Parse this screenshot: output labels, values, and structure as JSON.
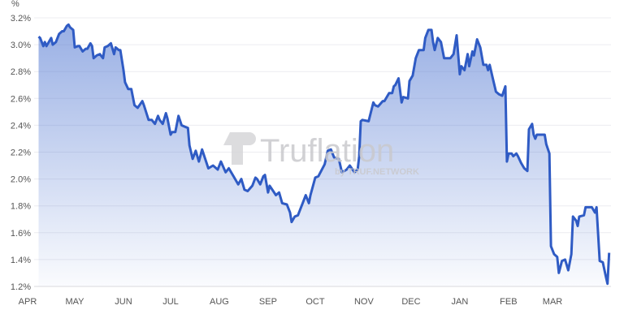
{
  "chart_data": {
    "type": "area",
    "title": "",
    "xlabel": "",
    "ylabel": "%",
    "ylim": [
      1.2,
      3.2
    ],
    "y_ticks": [
      "1.2%",
      "1.4%",
      "1.6%",
      "1.8%",
      "2.0%",
      "2.2%",
      "2.4%",
      "2.6%",
      "2.8%",
      "3.0%",
      "3.2%"
    ],
    "x_ticks": [
      {
        "label": "MAY",
        "date": "May 1"
      },
      {
        "label": "JUN",
        "date": "Jun 1"
      },
      {
        "label": "JUL",
        "date": "Jul 1"
      },
      {
        "label": "AUG",
        "date": "Aug 1"
      },
      {
        "label": "SEP",
        "date": "Sep 1"
      },
      {
        "label": "OCT",
        "date": "Oct 1"
      },
      {
        "label": "NOV",
        "date": "Nov 1"
      },
      {
        "label": "DEC",
        "date": "Dec 1"
      },
      {
        "label": "JAN",
        "date": "Jan 1"
      },
      {
        "label": "FEB",
        "date": "Feb 1"
      },
      {
        "label": "MAR",
        "date": "Mar 1"
      },
      {
        "label": "APR",
        "date": "Apr 1"
      }
    ],
    "grid": true,
    "legend": "none",
    "line_color": "#2f5bc4",
    "fill_color": "#5b7fd4",
    "watermark": {
      "brand": "Truflation",
      "byline": "by TRUF.NETWORK"
    },
    "series": [
      {
        "points": [
          [
            "Apr 8",
            3.06
          ],
          [
            "Apr 9",
            3.05
          ],
          [
            "Apr 11",
            2.99
          ],
          [
            "Apr 12",
            3.02
          ],
          [
            "Apr 13",
            2.99
          ],
          [
            "Apr 16",
            3.05
          ],
          [
            "Apr 17",
            3.0
          ],
          [
            "Apr 19",
            3.02
          ],
          [
            "Apr 21",
            3.08
          ],
          [
            "Apr 23",
            3.1
          ],
          [
            "Apr 24",
            3.1
          ],
          [
            "Apr 26",
            3.14
          ],
          [
            "Apr 27",
            3.15
          ],
          [
            "Apr 28",
            3.13
          ],
          [
            "Apr 30",
            3.11
          ],
          [
            "May 1",
            2.98
          ],
          [
            "May 3",
            2.99
          ],
          [
            "May 4",
            2.99
          ],
          [
            "May 6",
            2.95
          ],
          [
            "May 8",
            2.97
          ],
          [
            "May 9",
            2.97
          ],
          [
            "May 11",
            3.01
          ],
          [
            "May 12",
            2.99
          ],
          [
            "May 13",
            2.9
          ],
          [
            "May 15",
            2.92
          ],
          [
            "May 17",
            2.93
          ],
          [
            "May 19",
            2.9
          ],
          [
            "May 20",
            2.98
          ],
          [
            "May 22",
            2.99
          ],
          [
            "May 24",
            3.01
          ],
          [
            "May 26",
            2.93
          ],
          [
            "May 27",
            2.98
          ],
          [
            "May 29",
            2.96
          ],
          [
            "May 30",
            2.96
          ],
          [
            "Jun 1",
            2.81
          ],
          [
            "Jun 2",
            2.72
          ],
          [
            "Jun 4",
            2.67
          ],
          [
            "Jun 6",
            2.67
          ],
          [
            "Jun 8",
            2.55
          ],
          [
            "Jun 10",
            2.53
          ],
          [
            "Jun 13",
            2.58
          ],
          [
            "Jun 14",
            2.55
          ],
          [
            "Jun 17",
            2.44
          ],
          [
            "Jun 19",
            2.44
          ],
          [
            "Jun 21",
            2.41
          ],
          [
            "Jun 23",
            2.47
          ],
          [
            "Jun 24",
            2.44
          ],
          [
            "Jun 26",
            2.41
          ],
          [
            "Jun 28",
            2.49
          ],
          [
            "Jun 29",
            2.45
          ],
          [
            "Jul 1",
            2.33
          ],
          [
            "Jul 2",
            2.35
          ],
          [
            "Jul 4",
            2.35
          ],
          [
            "Jul 6",
            2.47
          ],
          [
            "Jul 8",
            2.4
          ],
          [
            "Jul 10",
            2.39
          ],
          [
            "Jul 12",
            2.38
          ],
          [
            "Jul 13",
            2.25
          ],
          [
            "Jul 15",
            2.15
          ],
          [
            "Jul 17",
            2.21
          ],
          [
            "Jul 19",
            2.13
          ],
          [
            "Jul 21",
            2.22
          ],
          [
            "Jul 25",
            2.08
          ],
          [
            "Jul 28",
            2.1
          ],
          [
            "Jul 31",
            2.07
          ],
          [
            "Aug 2",
            2.13
          ],
          [
            "Aug 5",
            2.05
          ],
          [
            "Aug 7",
            2.08
          ],
          [
            "Aug 10",
            2.02
          ],
          [
            "Aug 13",
            1.96
          ],
          [
            "Aug 15",
            2.0
          ],
          [
            "Aug 17",
            1.92
          ],
          [
            "Aug 19",
            1.91
          ],
          [
            "Aug 22",
            1.95
          ],
          [
            "Aug 24",
            2.01
          ],
          [
            "Aug 25",
            2.0
          ],
          [
            "Aug 27",
            1.96
          ],
          [
            "Aug 29",
            2.02
          ],
          [
            "Aug 30",
            2.03
          ],
          [
            "Sep 1",
            1.9
          ],
          [
            "Sep 2",
            1.95
          ],
          [
            "Sep 6",
            1.88
          ],
          [
            "Sep 8",
            1.9
          ],
          [
            "Sep 10",
            1.82
          ],
          [
            "Sep 13",
            1.81
          ],
          [
            "Sep 15",
            1.75
          ],
          [
            "Sep 16",
            1.68
          ],
          [
            "Sep 18",
            1.72
          ],
          [
            "Sep 20",
            1.73
          ],
          [
            "Sep 23",
            1.82
          ],
          [
            "Sep 25",
            1.88
          ],
          [
            "Sep 27",
            1.82
          ],
          [
            "Sep 28",
            1.88
          ],
          [
            "Oct 1",
            2.01
          ],
          [
            "Oct 3",
            2.02
          ],
          [
            "Oct 7",
            2.11
          ],
          [
            "Oct 9",
            2.21
          ],
          [
            "Oct 11",
            2.22
          ],
          [
            "Oct 13",
            2.16
          ],
          [
            "Oct 16",
            2.15
          ],
          [
            "Oct 18",
            2.05
          ],
          [
            "Oct 21",
            2.07
          ],
          [
            "Oct 23",
            2.1
          ],
          [
            "Oct 26",
            2.05
          ],
          [
            "Oct 28",
            2.07
          ],
          [
            "Oct 29",
            2.17
          ],
          [
            "Oct 30",
            2.43
          ],
          [
            "Oct 31",
            2.44
          ],
          [
            "Nov 4",
            2.43
          ],
          [
            "Nov 7",
            2.57
          ],
          [
            "Nov 8",
            2.55
          ],
          [
            "Nov 10",
            2.54
          ],
          [
            "Nov 13",
            2.58
          ],
          [
            "Nov 14",
            2.58
          ],
          [
            "Nov 17",
            2.64
          ],
          [
            "Nov 19",
            2.64
          ],
          [
            "Nov 20",
            2.69
          ],
          [
            "Nov 21",
            2.7
          ],
          [
            "Nov 23",
            2.75
          ],
          [
            "Nov 25",
            2.57
          ],
          [
            "Nov 26",
            2.61
          ],
          [
            "Nov 29",
            2.6
          ],
          [
            "Nov 30",
            2.73
          ],
          [
            "Dec 2",
            2.77
          ],
          [
            "Dec 4",
            2.9
          ],
          [
            "Dec 6",
            2.96
          ],
          [
            "Dec 9",
            2.96
          ],
          [
            "Dec 10",
            3.05
          ],
          [
            "Dec 12",
            3.11
          ],
          [
            "Dec 14",
            3.11
          ],
          [
            "Dec 15",
            3.02
          ],
          [
            "Dec 16",
            2.96
          ],
          [
            "Dec 18",
            3.05
          ],
          [
            "Dec 20",
            3.02
          ],
          [
            "Dec 22",
            2.9
          ],
          [
            "Dec 24",
            2.9
          ],
          [
            "Dec 26",
            2.9
          ],
          [
            "Dec 28",
            2.93
          ],
          [
            "Dec 30",
            3.07
          ],
          [
            "Jan 1",
            2.78
          ],
          [
            "Jan 2",
            2.84
          ],
          [
            "Jan 4",
            2.81
          ],
          [
            "Jan 6",
            2.93
          ],
          [
            "Jan 7",
            2.84
          ],
          [
            "Jan 9",
            2.95
          ],
          [
            "Jan 10",
            2.92
          ],
          [
            "Jan 12",
            3.04
          ],
          [
            "Jan 14",
            2.98
          ],
          [
            "Jan 16",
            2.85
          ],
          [
            "Jan 18",
            2.85
          ],
          [
            "Jan 19",
            2.81
          ],
          [
            "Jan 20",
            2.85
          ],
          [
            "Jan 22",
            2.75
          ],
          [
            "Jan 24",
            2.65
          ],
          [
            "Jan 26",
            2.63
          ],
          [
            "Jan 28",
            2.62
          ],
          [
            "Jan 30",
            2.69
          ],
          [
            "Jan 31",
            2.13
          ],
          [
            "Feb 1",
            2.19
          ],
          [
            "Feb 3",
            2.19
          ],
          [
            "Feb 4",
            2.17
          ],
          [
            "Feb 6",
            2.19
          ],
          [
            "Feb 7",
            2.17
          ],
          [
            "Feb 9",
            2.12
          ],
          [
            "Feb 11",
            2.08
          ],
          [
            "Feb 13",
            2.06
          ],
          [
            "Feb 14",
            2.37
          ],
          [
            "Feb 16",
            2.41
          ],
          [
            "Feb 17",
            2.33
          ],
          [
            "Feb 18",
            2.3
          ],
          [
            "Feb 19",
            2.33
          ],
          [
            "Feb 22",
            2.33
          ],
          [
            "Feb 24",
            2.33
          ],
          [
            "Feb 25",
            2.26
          ],
          [
            "Feb 27",
            2.19
          ],
          [
            "Feb 28",
            1.5
          ],
          [
            "Mar 2",
            1.44
          ],
          [
            "Mar 4",
            1.42
          ],
          [
            "Mar 5",
            1.3
          ],
          [
            "Mar 7",
            1.39
          ],
          [
            "Mar 9",
            1.4
          ],
          [
            "Mar 11",
            1.32
          ],
          [
            "Mar 13",
            1.44
          ],
          [
            "Mar 14",
            1.72
          ],
          [
            "Mar 16",
            1.69
          ],
          [
            "Mar 17",
            1.65
          ],
          [
            "Mar 18",
            1.72
          ],
          [
            "Mar 21",
            1.73
          ],
          [
            "Mar 22",
            1.79
          ],
          [
            "Mar 26",
            1.79
          ],
          [
            "Mar 28",
            1.75
          ],
          [
            "Mar 29",
            1.79
          ],
          [
            "Mar 31",
            1.39
          ],
          [
            "Apr 2",
            1.38
          ],
          [
            "Apr 4",
            1.27
          ],
          [
            "Apr 5",
            1.22
          ],
          [
            "Apr 6",
            1.45
          ]
        ]
      }
    ]
  }
}
